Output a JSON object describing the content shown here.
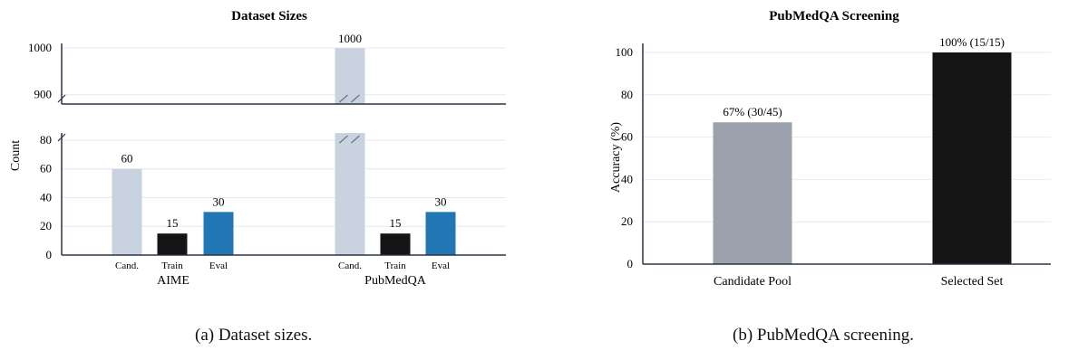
{
  "colors": {
    "candidate": "#c8d3df",
    "train": "#141414",
    "eval": "#2077b4",
    "pool": "#9ba2ae",
    "selected": "#141414",
    "axis": "#2b3344",
    "grid": "#e6e9ee"
  },
  "captions": {
    "left": "(a) Dataset sizes.",
    "right": "(b) PubMedQA screening."
  },
  "chart_data": [
    {
      "type": "bar",
      "title": "Dataset Sizes",
      "xlabel": "",
      "ylabel": "Count",
      "broken_axis": true,
      "ylim_lower": [
        0,
        85
      ],
      "ylim_upper": [
        880,
        1010
      ],
      "yticks_lower": [
        "0",
        "20",
        "40",
        "60",
        "80"
      ],
      "yticks_upper": [
        "900",
        "1000"
      ],
      "groups": [
        "AIME",
        "PubMedQA"
      ],
      "categories": [
        "Cand.",
        "Train",
        "Eval"
      ],
      "series": [
        {
          "group": "AIME",
          "values": [
            60,
            15,
            30
          ],
          "labels": [
            "60",
            "15",
            "30"
          ]
        },
        {
          "group": "PubMedQA",
          "values": [
            1000,
            15,
            30
          ],
          "labels": [
            "1000",
            "15",
            "30"
          ]
        }
      ]
    },
    {
      "type": "bar",
      "title": "PubMedQA Screening",
      "xlabel": "",
      "ylabel": "Accuracy (%)",
      "ylim": [
        0,
        100
      ],
      "yticks": [
        "0",
        "20",
        "40",
        "60",
        "80",
        "100"
      ],
      "categories": [
        "Candidate Pool",
        "Selected Set"
      ],
      "values": [
        67,
        100
      ],
      "labels": [
        "67% (30/45)",
        "100% (15/15)"
      ]
    }
  ]
}
